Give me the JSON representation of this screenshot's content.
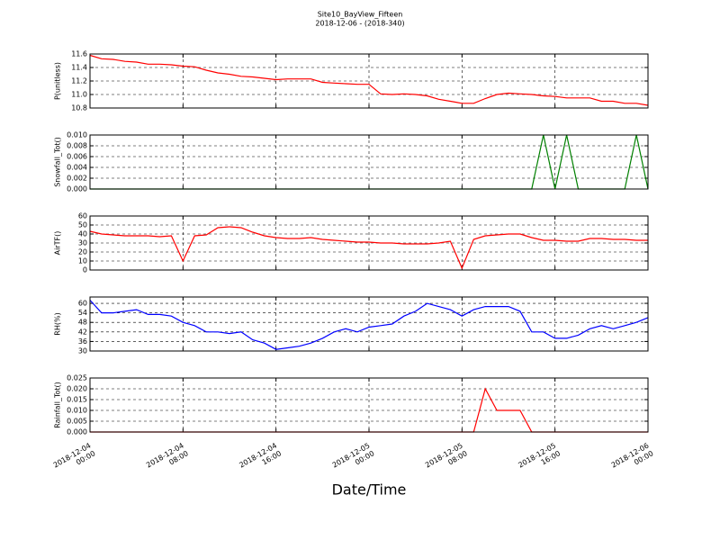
{
  "chart_data": [
    {
      "type": "line",
      "title": "Site10_BayView_Fifteen",
      "subtitle": "2018-12-06 - (2018-340)",
      "ylabel": "P(unitless)",
      "x": [
        "2018-12-04 00:00",
        "2018-12-04 01:00",
        "2018-12-04 02:00",
        "2018-12-04 03:00",
        "2018-12-04 04:00",
        "2018-12-04 05:00",
        "2018-12-04 06:00",
        "2018-12-04 07:00",
        "2018-12-04 08:00",
        "2018-12-04 09:00",
        "2018-12-04 10:00",
        "2018-12-04 11:00",
        "2018-12-04 12:00",
        "2018-12-04 13:00",
        "2018-12-04 14:00",
        "2018-12-04 15:00",
        "2018-12-04 16:00",
        "2018-12-04 17:00",
        "2018-12-04 18:00",
        "2018-12-04 19:00",
        "2018-12-04 20:00",
        "2018-12-04 21:00",
        "2018-12-04 22:00",
        "2018-12-04 23:00",
        "2018-12-05 00:00",
        "2018-12-05 01:00",
        "2018-12-05 02:00",
        "2018-12-05 03:00",
        "2018-12-05 04:00",
        "2018-12-05 05:00",
        "2018-12-05 06:00",
        "2018-12-05 07:00",
        "2018-12-05 08:00",
        "2018-12-05 09:00",
        "2018-12-05 10:00",
        "2018-12-05 11:00",
        "2018-12-05 12:00",
        "2018-12-05 13:00",
        "2018-12-05 14:00",
        "2018-12-05 15:00",
        "2018-12-05 16:00",
        "2018-12-05 17:00",
        "2018-12-05 18:00",
        "2018-12-05 19:00",
        "2018-12-05 20:00",
        "2018-12-05 21:00",
        "2018-12-05 22:00",
        "2018-12-05 23:00",
        "2018-12-06 00:00"
      ],
      "series": [
        {
          "color": "#ff0000",
          "values": [
            11.58,
            11.53,
            11.52,
            11.49,
            11.48,
            11.45,
            11.45,
            11.44,
            11.42,
            11.41,
            11.36,
            11.32,
            11.3,
            11.27,
            11.26,
            11.24,
            11.22,
            11.23,
            11.23,
            11.23,
            11.18,
            11.17,
            11.16,
            11.15,
            11.15,
            11.01,
            11.0,
            11.01,
            11.0,
            10.98,
            10.93,
            10.9,
            10.87,
            10.87,
            10.94,
            11.0,
            11.02,
            11.01,
            11.0,
            10.98,
            10.97,
            10.95,
            10.95,
            10.95,
            10.9,
            10.9,
            10.87,
            10.87,
            10.84
          ]
        }
      ],
      "xlim": [
        "2018-12-04 00:00",
        "2018-12-06 00:00"
      ],
      "xticks": [
        "2018-12-04 00:00",
        "2018-12-04 08:00",
        "2018-12-04 16:00",
        "2018-12-05 00:00",
        "2018-12-05 08:00",
        "2018-12-05 16:00",
        "2018-12-06 00:00"
      ],
      "ylim": [
        10.8,
        11.6
      ],
      "yticks": [
        {
          "value": 10.8,
          "label": "10.8"
        },
        {
          "value": 11,
          "label": "11.0"
        },
        {
          "value": 11.2,
          "label": "11.2"
        },
        {
          "value": 11.4,
          "label": "11.4"
        },
        {
          "value": 11.6,
          "label": "11.6"
        }
      ],
      "grid": true
    },
    {
      "type": "line",
      "ylabel": "Snowfall_Tot()",
      "x": [
        "2018-12-04 00:00",
        "2018-12-04 01:00",
        "2018-12-04 02:00",
        "2018-12-04 03:00",
        "2018-12-04 04:00",
        "2018-12-04 05:00",
        "2018-12-04 06:00",
        "2018-12-04 07:00",
        "2018-12-04 08:00",
        "2018-12-04 09:00",
        "2018-12-04 10:00",
        "2018-12-04 11:00",
        "2018-12-04 12:00",
        "2018-12-04 13:00",
        "2018-12-04 14:00",
        "2018-12-04 15:00",
        "2018-12-04 16:00",
        "2018-12-04 17:00",
        "2018-12-04 18:00",
        "2018-12-04 19:00",
        "2018-12-04 20:00",
        "2018-12-04 21:00",
        "2018-12-04 22:00",
        "2018-12-04 23:00",
        "2018-12-05 00:00",
        "2018-12-05 01:00",
        "2018-12-05 02:00",
        "2018-12-05 03:00",
        "2018-12-05 04:00",
        "2018-12-05 05:00",
        "2018-12-05 06:00",
        "2018-12-05 07:00",
        "2018-12-05 08:00",
        "2018-12-05 09:00",
        "2018-12-05 10:00",
        "2018-12-05 11:00",
        "2018-12-05 12:00",
        "2018-12-05 13:00",
        "2018-12-05 14:00",
        "2018-12-05 15:00",
        "2018-12-05 16:00",
        "2018-12-05 17:00",
        "2018-12-05 18:00",
        "2018-12-05 19:00",
        "2018-12-05 20:00",
        "2018-12-05 21:00",
        "2018-12-05 22:00",
        "2018-12-05 23:00",
        "2018-12-06 00:00"
      ],
      "series": [
        {
          "color": "#008000",
          "values": [
            0,
            0,
            0,
            0,
            0,
            0,
            0,
            0,
            0,
            0,
            0,
            0,
            0,
            0,
            0,
            0,
            0,
            0,
            0,
            0,
            0,
            0,
            0,
            0,
            0,
            0,
            0,
            0,
            0,
            0,
            0,
            0,
            0,
            0,
            0,
            0,
            0,
            0,
            0,
            0.01,
            0,
            0.01,
            0,
            0,
            0,
            0,
            0,
            0.01,
            0
          ]
        }
      ],
      "xlim": [
        "2018-12-04 00:00",
        "2018-12-06 00:00"
      ],
      "xticks": [
        "2018-12-04 00:00",
        "2018-12-04 08:00",
        "2018-12-04 16:00",
        "2018-12-05 00:00",
        "2018-12-05 08:00",
        "2018-12-05 16:00",
        "2018-12-06 00:00"
      ],
      "ylim": [
        0,
        0.01
      ],
      "yticks": [
        {
          "value": 0,
          "label": "0.000"
        },
        {
          "value": 0.002,
          "label": "0.002"
        },
        {
          "value": 0.004,
          "label": "0.004"
        },
        {
          "value": 0.006,
          "label": "0.006"
        },
        {
          "value": 0.008,
          "label": "0.008"
        },
        {
          "value": 0.01,
          "label": "0.010"
        }
      ],
      "grid": true
    },
    {
      "type": "line",
      "ylabel": "AirTF()",
      "x": [
        "2018-12-04 00:00",
        "2018-12-04 01:00",
        "2018-12-04 02:00",
        "2018-12-04 03:00",
        "2018-12-04 04:00",
        "2018-12-04 05:00",
        "2018-12-04 06:00",
        "2018-12-04 07:00",
        "2018-12-04 08:00",
        "2018-12-04 09:00",
        "2018-12-04 10:00",
        "2018-12-04 11:00",
        "2018-12-04 12:00",
        "2018-12-04 13:00",
        "2018-12-04 14:00",
        "2018-12-04 15:00",
        "2018-12-04 16:00",
        "2018-12-04 17:00",
        "2018-12-04 18:00",
        "2018-12-04 19:00",
        "2018-12-04 20:00",
        "2018-12-04 21:00",
        "2018-12-04 22:00",
        "2018-12-04 23:00",
        "2018-12-05 00:00",
        "2018-12-05 01:00",
        "2018-12-05 02:00",
        "2018-12-05 03:00",
        "2018-12-05 04:00",
        "2018-12-05 05:00",
        "2018-12-05 06:00",
        "2018-12-05 07:00",
        "2018-12-05 08:00",
        "2018-12-05 09:00",
        "2018-12-05 10:00",
        "2018-12-05 11:00",
        "2018-12-05 12:00",
        "2018-12-05 13:00",
        "2018-12-05 14:00",
        "2018-12-05 15:00",
        "2018-12-05 16:00",
        "2018-12-05 17:00",
        "2018-12-05 18:00",
        "2018-12-05 19:00",
        "2018-12-05 20:00",
        "2018-12-05 21:00",
        "2018-12-05 22:00",
        "2018-12-05 23:00",
        "2018-12-06 00:00"
      ],
      "series": [
        {
          "color": "#ff0000",
          "values": [
            43,
            40,
            39,
            38,
            38,
            38,
            37,
            38,
            10,
            38,
            39,
            47,
            48,
            47,
            42,
            38,
            36,
            35,
            35,
            36,
            34,
            33,
            32,
            31,
            31,
            30,
            30,
            29,
            29,
            29,
            30,
            32,
            2,
            34,
            38,
            39,
            40,
            40,
            36,
            33,
            33,
            32,
            32,
            35,
            35,
            34,
            34,
            33,
            33
          ]
        }
      ],
      "xlim": [
        "2018-12-04 00:00",
        "2018-12-06 00:00"
      ],
      "xticks": [
        "2018-12-04 00:00",
        "2018-12-04 08:00",
        "2018-12-04 16:00",
        "2018-12-05 00:00",
        "2018-12-05 08:00",
        "2018-12-05 16:00",
        "2018-12-06 00:00"
      ],
      "ylim": [
        0,
        60
      ],
      "yticks": [
        0,
        10,
        20,
        30,
        40,
        50,
        60
      ],
      "grid": true
    },
    {
      "type": "line",
      "ylabel": "RH(%)",
      "x": [
        "2018-12-04 00:00",
        "2018-12-04 01:00",
        "2018-12-04 02:00",
        "2018-12-04 03:00",
        "2018-12-04 04:00",
        "2018-12-04 05:00",
        "2018-12-04 06:00",
        "2018-12-04 07:00",
        "2018-12-04 08:00",
        "2018-12-04 09:00",
        "2018-12-04 10:00",
        "2018-12-04 11:00",
        "2018-12-04 12:00",
        "2018-12-04 13:00",
        "2018-12-04 14:00",
        "2018-12-04 15:00",
        "2018-12-04 16:00",
        "2018-12-04 17:00",
        "2018-12-04 18:00",
        "2018-12-04 19:00",
        "2018-12-04 20:00",
        "2018-12-04 21:00",
        "2018-12-04 22:00",
        "2018-12-04 23:00",
        "2018-12-05 00:00",
        "2018-12-05 01:00",
        "2018-12-05 02:00",
        "2018-12-05 03:00",
        "2018-12-05 04:00",
        "2018-12-05 05:00",
        "2018-12-05 06:00",
        "2018-12-05 07:00",
        "2018-12-05 08:00",
        "2018-12-05 09:00",
        "2018-12-05 10:00",
        "2018-12-05 11:00",
        "2018-12-05 12:00",
        "2018-12-05 13:00",
        "2018-12-05 14:00",
        "2018-12-05 15:00",
        "2018-12-05 16:00",
        "2018-12-05 17:00",
        "2018-12-05 18:00",
        "2018-12-05 19:00",
        "2018-12-05 20:00",
        "2018-12-05 21:00",
        "2018-12-05 22:00",
        "2018-12-05 23:00",
        "2018-12-06 00:00"
      ],
      "series": [
        {
          "color": "#0000ff",
          "values": [
            62,
            54,
            54,
            55,
            56,
            53,
            53,
            52,
            48,
            46,
            42,
            42,
            41,
            42,
            37,
            35,
            31,
            32,
            33,
            35,
            38,
            42,
            44,
            42,
            45,
            46,
            47,
            52,
            55,
            60,
            58,
            56,
            52,
            56,
            58,
            58,
            58,
            55,
            42,
            42,
            38,
            38,
            40,
            44,
            46,
            44,
            46,
            48,
            51
          ]
        }
      ],
      "xlim": [
        "2018-12-04 00:00",
        "2018-12-06 00:00"
      ],
      "xticks": [
        "2018-12-04 00:00",
        "2018-12-04 08:00",
        "2018-12-04 16:00",
        "2018-12-05 00:00",
        "2018-12-05 08:00",
        "2018-12-05 16:00",
        "2018-12-06 00:00"
      ],
      "ylim": [
        30,
        64
      ],
      "yticks": [
        30,
        36,
        42,
        48,
        54,
        60
      ],
      "grid": true
    },
    {
      "type": "line",
      "ylabel": "Rainfall_Tot()",
      "xlabel": "Date/Time",
      "x": [
        "2018-12-04 00:00",
        "2018-12-04 01:00",
        "2018-12-04 02:00",
        "2018-12-04 03:00",
        "2018-12-04 04:00",
        "2018-12-04 05:00",
        "2018-12-04 06:00",
        "2018-12-04 07:00",
        "2018-12-04 08:00",
        "2018-12-04 09:00",
        "2018-12-04 10:00",
        "2018-12-04 11:00",
        "2018-12-04 12:00",
        "2018-12-04 13:00",
        "2018-12-04 14:00",
        "2018-12-04 15:00",
        "2018-12-04 16:00",
        "2018-12-04 17:00",
        "2018-12-04 18:00",
        "2018-12-04 19:00",
        "2018-12-04 20:00",
        "2018-12-04 21:00",
        "2018-12-04 22:00",
        "2018-12-04 23:00",
        "2018-12-05 00:00",
        "2018-12-05 01:00",
        "2018-12-05 02:00",
        "2018-12-05 03:00",
        "2018-12-05 04:00",
        "2018-12-05 05:00",
        "2018-12-05 06:00",
        "2018-12-05 07:00",
        "2018-12-05 08:00",
        "2018-12-05 09:00",
        "2018-12-05 10:00",
        "2018-12-05 11:00",
        "2018-12-05 12:00",
        "2018-12-05 13:00",
        "2018-12-05 14:00",
        "2018-12-05 15:00",
        "2018-12-05 16:00",
        "2018-12-05 17:00",
        "2018-12-05 18:00",
        "2018-12-05 19:00",
        "2018-12-05 20:00",
        "2018-12-05 21:00",
        "2018-12-05 22:00",
        "2018-12-05 23:00",
        "2018-12-06 00:00"
      ],
      "series": [
        {
          "color": "#ff0000",
          "values": [
            0,
            0,
            0,
            0,
            0,
            0,
            0,
            0,
            0,
            0,
            0,
            0,
            0,
            0,
            0,
            0,
            0,
            0,
            0,
            0,
            0,
            0,
            0,
            0,
            0,
            0,
            0,
            0,
            0,
            0,
            0,
            0,
            0,
            0,
            0.02,
            0.01,
            0.01,
            0.01,
            0,
            0,
            0,
            0,
            0,
            0,
            0,
            0,
            0,
            0,
            0
          ]
        }
      ],
      "xlim": [
        "2018-12-04 00:00",
        "2018-12-06 00:00"
      ],
      "xticks": [
        "2018-12-04 00:00",
        "2018-12-04 08:00",
        "2018-12-04 16:00",
        "2018-12-05 00:00",
        "2018-12-05 08:00",
        "2018-12-05 16:00",
        "2018-12-06 00:00"
      ],
      "ylim": [
        0,
        0.025
      ],
      "yticks": [
        {
          "value": 0,
          "label": "0.000"
        },
        {
          "value": 0.005,
          "label": "0.005"
        },
        {
          "value": 0.01,
          "label": "0.010"
        },
        {
          "value": 0.015,
          "label": "0.015"
        },
        {
          "value": 0.02,
          "label": "0.020"
        },
        {
          "value": 0.025,
          "label": "0.025"
        }
      ],
      "grid": true
    }
  ]
}
